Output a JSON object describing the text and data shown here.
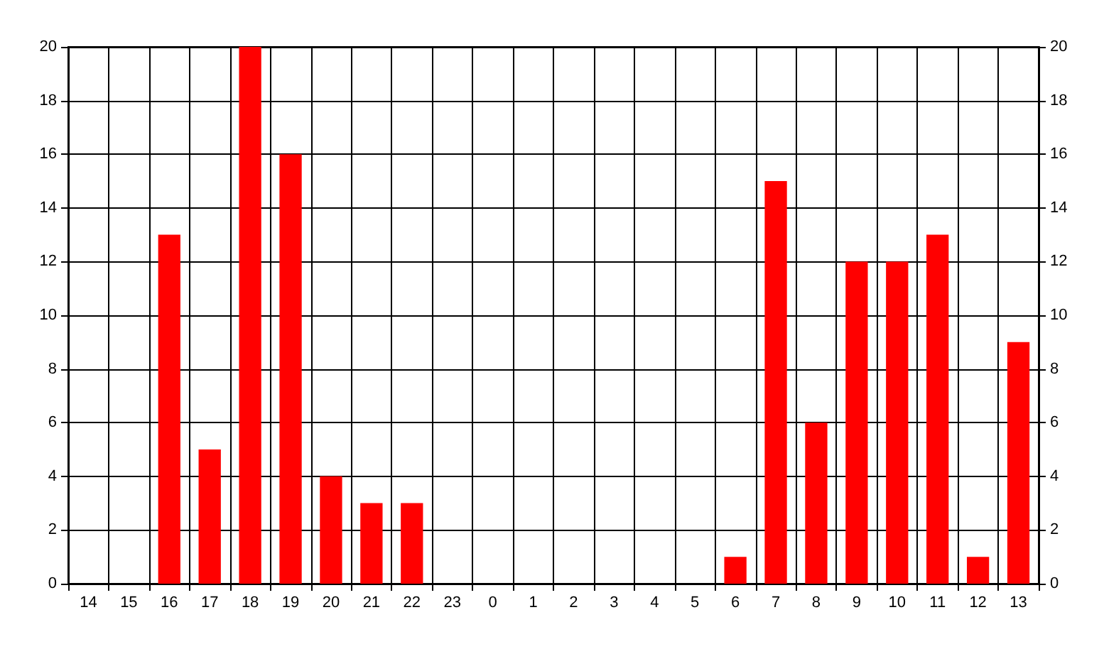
{
  "chart_data": {
    "type": "bar",
    "categories": [
      "14",
      "15",
      "16",
      "17",
      "18",
      "19",
      "20",
      "21",
      "22",
      "23",
      "0",
      "1",
      "2",
      "3",
      "4",
      "5",
      "6",
      "7",
      "8",
      "9",
      "10",
      "11",
      "12",
      "13"
    ],
    "values": [
      0,
      0,
      13,
      5,
      20,
      16,
      4,
      3,
      3,
      0,
      0,
      0,
      0,
      0,
      0,
      0,
      1,
      15,
      6,
      12,
      12,
      13,
      1,
      9
    ],
    "color": "#ff0000",
    "ylim": [
      0,
      20
    ],
    "yticks": [
      0,
      2,
      4,
      6,
      8,
      10,
      12,
      14,
      16,
      18,
      20
    ],
    "y2lim": [
      0,
      20
    ],
    "y2ticks": [
      0,
      2,
      4,
      6,
      8,
      10,
      12,
      14,
      16,
      18,
      20
    ],
    "grid": true
  }
}
